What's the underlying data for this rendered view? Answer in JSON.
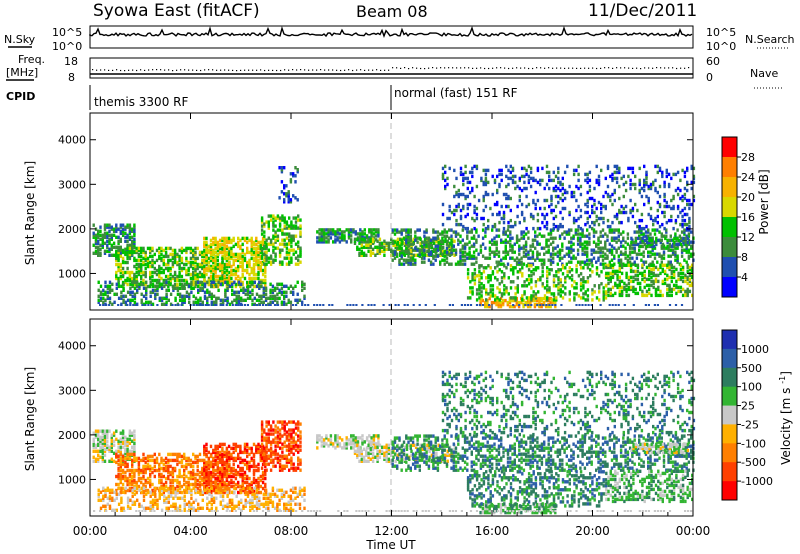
{
  "header": {
    "station": "Syowa East (fitACF)",
    "beam": "Beam 08",
    "date": "11/Dec/2011"
  },
  "top_panels": {
    "nsky_label": "N.Sky",
    "nsearch_label": "N.Search",
    "noise_ticks_left": [
      "10^5",
      "10^0"
    ],
    "noise_ticks_right": [
      "10^5",
      "10^0"
    ],
    "freq_label_line1": "Freq.",
    "freq_label_line2": "[MHz]",
    "freq_ticks": [
      "18",
      "8"
    ],
    "nave_label": "Nave",
    "nave_ticks": [
      "60",
      "0"
    ],
    "cpid_label": "CPID",
    "cpid_segments": [
      {
        "label": "themis 3300 RF",
        "start_hour": 0
      },
      {
        "label": "normal (fast) 151 RF",
        "start_hour": 12
      }
    ]
  },
  "chart_data": [
    {
      "type": "heatmap",
      "name": "power",
      "xlabel": "Time UT",
      "ylabel": "Slant Range [km]",
      "xlim": [
        0,
        24
      ],
      "ylim": [
        180,
        4600
      ],
      "x_ticks": [
        "00:00",
        "04:00",
        "08:00",
        "12:00",
        "16:00",
        "20:00",
        "00:00"
      ],
      "y_ticks": [
        1000,
        2000,
        3000,
        4000
      ],
      "colorbar_label": "Power [dB]",
      "colorbar_ticks": [
        28,
        24,
        20,
        16,
        12,
        8,
        4
      ],
      "colorbar_colors": [
        "#ff0000",
        "#ff7f00",
        "#f7b200",
        "#d8d800",
        "#00c000",
        "#3c8c3c",
        "#1f4fb0",
        "#0000ff"
      ],
      "echo_regions": [
        {
          "t0": 0.1,
          "t1": 1.8,
          "r0": 1400,
          "r1": 2100,
          "density": 0.55,
          "level": 2
        },
        {
          "t0": 1.0,
          "t1": 5.5,
          "r0": 700,
          "r1": 1600,
          "density": 0.5,
          "level": 3
        },
        {
          "t0": 4.5,
          "t1": 7.0,
          "r0": 700,
          "r1": 1800,
          "density": 0.55,
          "level": 4
        },
        {
          "t0": 0.3,
          "t1": 8.5,
          "r0": 300,
          "r1": 800,
          "density": 0.35,
          "level": 2
        },
        {
          "t0": 6.8,
          "t1": 8.4,
          "r0": 1200,
          "r1": 2300,
          "density": 0.45,
          "level": 3
        },
        {
          "t0": 7.5,
          "t1": 8.3,
          "r0": 2600,
          "r1": 3400,
          "density": 0.25,
          "level": 1
        },
        {
          "t0": 9.0,
          "t1": 11.5,
          "r0": 1700,
          "r1": 2000,
          "density": 0.55,
          "level": 2
        },
        {
          "t0": 10.5,
          "t1": 14.5,
          "r0": 1400,
          "r1": 1800,
          "density": 0.55,
          "level": 3
        },
        {
          "t0": 12.0,
          "t1": 24.0,
          "r0": 1200,
          "r1": 2000,
          "density": 0.35,
          "level": 2
        },
        {
          "t0": 14.0,
          "t1": 24.0,
          "r0": 2000,
          "r1": 3400,
          "density": 0.18,
          "level": 1
        },
        {
          "t0": 15.5,
          "t1": 18.5,
          "r0": 250,
          "r1": 450,
          "density": 0.6,
          "level": 5
        },
        {
          "t0": 15.0,
          "t1": 20.5,
          "r0": 400,
          "r1": 1200,
          "density": 0.3,
          "level": 3
        },
        {
          "t0": 20.5,
          "t1": 24.0,
          "r0": 500,
          "r1": 1200,
          "density": 0.4,
          "level": 3
        },
        {
          "t0": 21.5,
          "t1": 23.8,
          "r0": 1600,
          "r1": 1800,
          "density": 0.55,
          "level": 2
        }
      ]
    },
    {
      "type": "heatmap",
      "name": "velocity",
      "xlabel": "Time UT",
      "ylabel": "Slant Range [km]",
      "xlim": [
        0,
        24
      ],
      "ylim": [
        180,
        4600
      ],
      "x_ticks": [
        "00:00",
        "04:00",
        "08:00",
        "12:00",
        "16:00",
        "20:00",
        "00:00"
      ],
      "y_ticks": [
        1000,
        2000,
        3000,
        4000
      ],
      "colorbar_label": "Velocity [m s^-1]",
      "colorbar_ticks": [
        "1000",
        "500",
        "100",
        "25",
        "-25",
        "-100",
        "-500",
        "-1000"
      ],
      "colorbar_colors": [
        "#1f2fb0",
        "#2c5fa8",
        "#2d7d5f",
        "#33b533",
        "#c8c8c8",
        "#ffb000",
        "#ff7f00",
        "#ff4000",
        "#ff0000"
      ],
      "echo_regions": [
        {
          "t0": 0.1,
          "t1": 1.8,
          "r0": 1400,
          "r1": 2100,
          "density": 0.5,
          "level": 4
        },
        {
          "t0": 1.0,
          "t1": 5.5,
          "r0": 700,
          "r1": 1600,
          "density": 0.5,
          "level": 6
        },
        {
          "t0": 4.5,
          "t1": 7.0,
          "r0": 700,
          "r1": 1800,
          "density": 0.55,
          "level": 7
        },
        {
          "t0": 0.3,
          "t1": 8.5,
          "r0": 300,
          "r1": 800,
          "density": 0.35,
          "level": 5
        },
        {
          "t0": 6.8,
          "t1": 8.4,
          "r0": 1200,
          "r1": 2300,
          "density": 0.5,
          "level": 7
        },
        {
          "t0": 9.0,
          "t1": 11.5,
          "r0": 1700,
          "r1": 2000,
          "density": 0.5,
          "level": 4
        },
        {
          "t0": 10.5,
          "t1": 14.5,
          "r0": 1400,
          "r1": 1800,
          "density": 0.5,
          "level": 4
        },
        {
          "t0": 12.0,
          "t1": 24.0,
          "r0": 1200,
          "r1": 2000,
          "density": 0.35,
          "level": 2
        },
        {
          "t0": 14.0,
          "t1": 24.0,
          "r0": 2000,
          "r1": 3400,
          "density": 0.18,
          "level": 2
        },
        {
          "t0": 15.5,
          "t1": 18.5,
          "r0": 250,
          "r1": 450,
          "density": 0.6,
          "level": 3
        },
        {
          "t0": 15.0,
          "t1": 20.5,
          "r0": 400,
          "r1": 1200,
          "density": 0.3,
          "level": 2
        },
        {
          "t0": 20.5,
          "t1": 24.0,
          "r0": 500,
          "r1": 1200,
          "density": 0.4,
          "level": 3
        },
        {
          "t0": 21.5,
          "t1": 23.8,
          "r0": 1600,
          "r1": 1800,
          "density": 0.55,
          "level": 4
        }
      ]
    }
  ]
}
